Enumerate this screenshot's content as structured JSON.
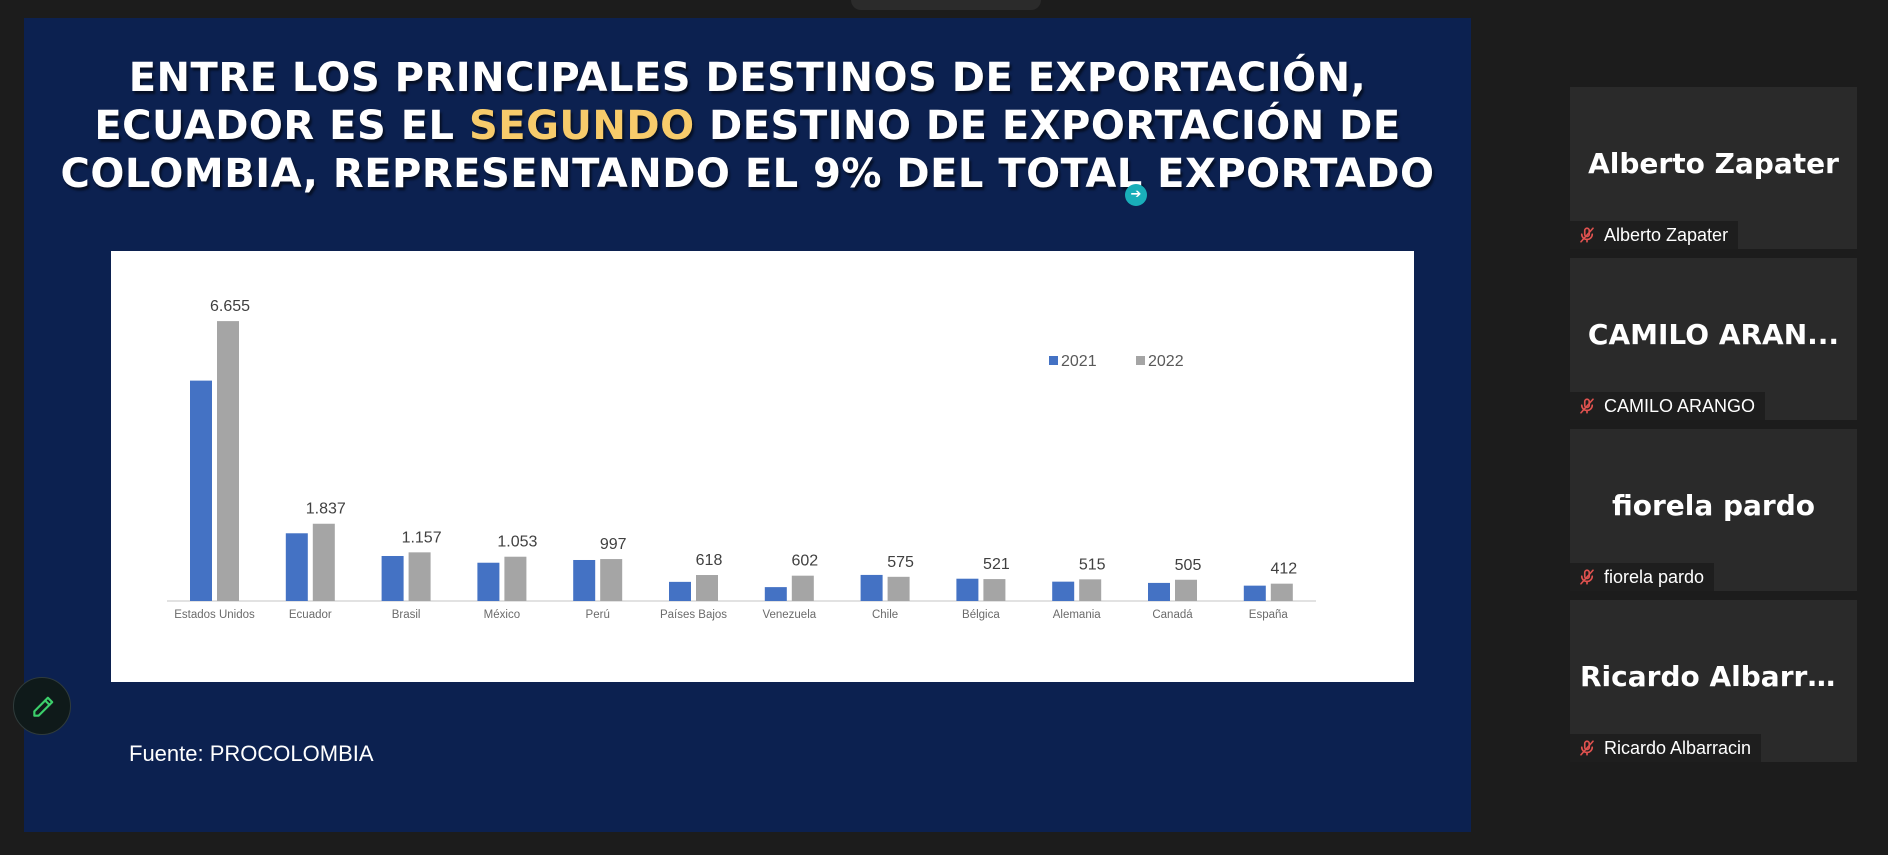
{
  "slide": {
    "title_line1": "ENTRE LOS PRINCIPALES DESTINOS DE EXPORTACIÓN,",
    "title_line2_pre": "ECUADOR ES EL ",
    "title_line2_highlight": "SEGUNDO",
    "title_line2_post": " DESTINO DE EXPORTACIÓN DE",
    "title_line3": "COLOMBIA, REPRESENTANDO EL 9% DEL TOTAL EXPORTADO",
    "source": "Fuente: PROCOLOMBIA",
    "cursor_glyph": "➔"
  },
  "colors": {
    "slide_bg": "#0c2150",
    "highlight": "#f7cb6b",
    "series_2021": "#4472c4",
    "series_2022": "#a5a5a5",
    "muted_mic": "#e0524f"
  },
  "chart_data": {
    "type": "bar",
    "categories": [
      "Estados Unidos",
      "Ecuador",
      "Brasil",
      "México",
      "Perú",
      "Países Bajos",
      "Venezuela",
      "Chile",
      "Bélgica",
      "Alemania",
      "Canadá",
      "España"
    ],
    "series": [
      {
        "name": "2021",
        "values": [
          5240,
          1610,
          1070,
          910,
          975,
          455,
          330,
          620,
          530,
          460,
          430,
          365
        ]
      },
      {
        "name": "2022",
        "values": [
          6655,
          1837,
          1157,
          1053,
          997,
          618,
          602,
          575,
          521,
          515,
          505,
          412
        ]
      }
    ],
    "data_labels": [
      "6.655",
      "1.837",
      "1.157",
      "1.053",
      "997",
      "618",
      "602",
      "575",
      "521",
      "515",
      "505",
      "412"
    ],
    "legend": [
      "2021",
      "2022"
    ],
    "legend_position": "top-right",
    "ylim": [
      0,
      6800
    ],
    "grid": false,
    "title": "",
    "xlabel": "",
    "ylabel": ""
  },
  "participants": [
    {
      "display": "Alberto Zapater",
      "label": "Alberto Zapater"
    },
    {
      "display": "CAMILO  ARAN...",
      "label": "CAMILO ARANGO"
    },
    {
      "display": "fiorela pardo",
      "label": "fiorela pardo"
    },
    {
      "display": "Ricardo  Albarra...",
      "label": "Ricardo Albarracin"
    }
  ],
  "icons": {
    "pencil": "pencil-icon",
    "muted_mic": "mic-off-icon"
  }
}
